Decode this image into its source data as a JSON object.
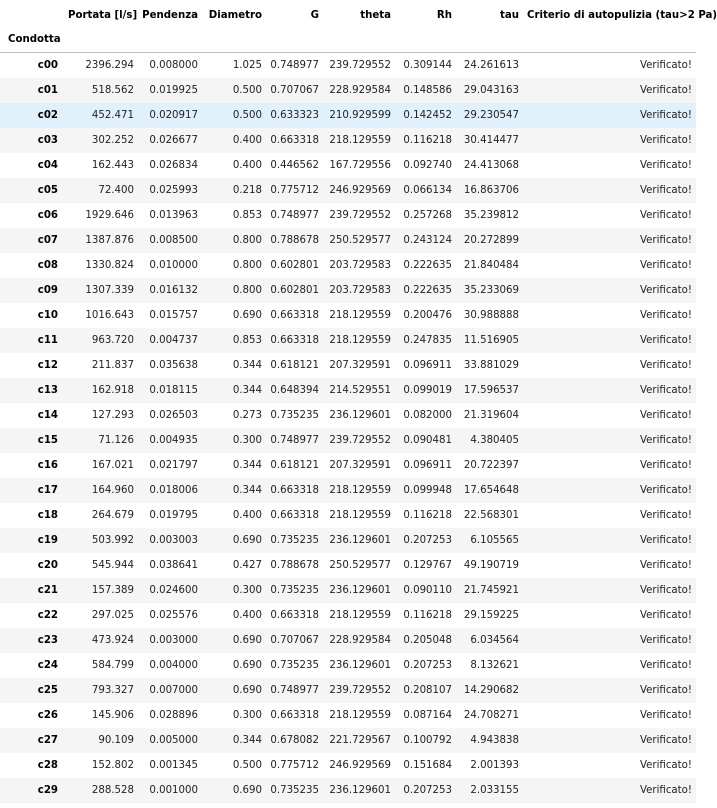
{
  "table": {
    "columns": [
      "Portata [l/s]",
      "Pendenza",
      "Diametro",
      "G",
      "theta",
      "Rh",
      "tau",
      "Criterio di autopulizia (tau>2 Pa)"
    ],
    "index_name": "Condotta",
    "rows": [
      {
        "id": "c00",
        "portata": "2396.294",
        "pendenza": "0.008000",
        "diametro": "1.025",
        "g": "0.748977",
        "theta": "239.729552",
        "rh": "0.309144",
        "tau": "24.261613",
        "criterio": "Verificato!"
      },
      {
        "id": "c01",
        "portata": "518.562",
        "pendenza": "0.019925",
        "diametro": "0.500",
        "g": "0.707067",
        "theta": "228.929584",
        "rh": "0.148586",
        "tau": "29.043163",
        "criterio": "Verificato!"
      },
      {
        "id": "c02",
        "portata": "452.471",
        "pendenza": "0.020917",
        "diametro": "0.500",
        "g": "0.633323",
        "theta": "210.929599",
        "rh": "0.142452",
        "tau": "29.230547",
        "criterio": "Verificato!"
      },
      {
        "id": "c03",
        "portata": "302.252",
        "pendenza": "0.026677",
        "diametro": "0.400",
        "g": "0.663318",
        "theta": "218.129559",
        "rh": "0.116218",
        "tau": "30.414477",
        "criterio": "Verificato!"
      },
      {
        "id": "c04",
        "portata": "162.443",
        "pendenza": "0.026834",
        "diametro": "0.400",
        "g": "0.446562",
        "theta": "167.729556",
        "rh": "0.092740",
        "tau": "24.413068",
        "criterio": "Verificato!"
      },
      {
        "id": "c05",
        "portata": "72.400",
        "pendenza": "0.025993",
        "diametro": "0.218",
        "g": "0.775712",
        "theta": "246.929569",
        "rh": "0.066134",
        "tau": "16.863706",
        "criterio": "Verificato!"
      },
      {
        "id": "c06",
        "portata": "1929.646",
        "pendenza": "0.013963",
        "diametro": "0.853",
        "g": "0.748977",
        "theta": "239.729552",
        "rh": "0.257268",
        "tau": "35.239812",
        "criterio": "Verificato!"
      },
      {
        "id": "c07",
        "portata": "1387.876",
        "pendenza": "0.008500",
        "diametro": "0.800",
        "g": "0.788678",
        "theta": "250.529577",
        "rh": "0.243124",
        "tau": "20.272899",
        "criterio": "Verificato!"
      },
      {
        "id": "c08",
        "portata": "1330.824",
        "pendenza": "0.010000",
        "diametro": "0.800",
        "g": "0.602801",
        "theta": "203.729583",
        "rh": "0.222635",
        "tau": "21.840484",
        "criterio": "Verificato!"
      },
      {
        "id": "c09",
        "portata": "1307.339",
        "pendenza": "0.016132",
        "diametro": "0.800",
        "g": "0.602801",
        "theta": "203.729583",
        "rh": "0.222635",
        "tau": "35.233069",
        "criterio": "Verificato!"
      },
      {
        "id": "c10",
        "portata": "1016.643",
        "pendenza": "0.015757",
        "diametro": "0.690",
        "g": "0.663318",
        "theta": "218.129559",
        "rh": "0.200476",
        "tau": "30.988888",
        "criterio": "Verificato!"
      },
      {
        "id": "c11",
        "portata": "963.720",
        "pendenza": "0.004737",
        "diametro": "0.853",
        "g": "0.663318",
        "theta": "218.129559",
        "rh": "0.247835",
        "tau": "11.516905",
        "criterio": "Verificato!"
      },
      {
        "id": "c12",
        "portata": "211.837",
        "pendenza": "0.035638",
        "diametro": "0.344",
        "g": "0.618121",
        "theta": "207.329591",
        "rh": "0.096911",
        "tau": "33.881029",
        "criterio": "Verificato!"
      },
      {
        "id": "c13",
        "portata": "162.918",
        "pendenza": "0.018115",
        "diametro": "0.344",
        "g": "0.648394",
        "theta": "214.529551",
        "rh": "0.099019",
        "tau": "17.596537",
        "criterio": "Verificato!"
      },
      {
        "id": "c14",
        "portata": "127.293",
        "pendenza": "0.026503",
        "diametro": "0.273",
        "g": "0.735235",
        "theta": "236.129601",
        "rh": "0.082000",
        "tau": "21.319604",
        "criterio": "Verificato!"
      },
      {
        "id": "c15",
        "portata": "71.126",
        "pendenza": "0.004935",
        "diametro": "0.300",
        "g": "0.748977",
        "theta": "239.729552",
        "rh": "0.090481",
        "tau": "4.380405",
        "criterio": "Verificato!"
      },
      {
        "id": "c16",
        "portata": "167.021",
        "pendenza": "0.021797",
        "diametro": "0.344",
        "g": "0.618121",
        "theta": "207.329591",
        "rh": "0.096911",
        "tau": "20.722397",
        "criterio": "Verificato!"
      },
      {
        "id": "c17",
        "portata": "164.960",
        "pendenza": "0.018006",
        "diametro": "0.344",
        "g": "0.663318",
        "theta": "218.129559",
        "rh": "0.099948",
        "tau": "17.654648",
        "criterio": "Verificato!"
      },
      {
        "id": "c18",
        "portata": "264.679",
        "pendenza": "0.019795",
        "diametro": "0.400",
        "g": "0.663318",
        "theta": "218.129559",
        "rh": "0.116218",
        "tau": "22.568301",
        "criterio": "Verificato!"
      },
      {
        "id": "c19",
        "portata": "503.992",
        "pendenza": "0.003003",
        "diametro": "0.690",
        "g": "0.735235",
        "theta": "236.129601",
        "rh": "0.207253",
        "tau": "6.105565",
        "criterio": "Verificato!"
      },
      {
        "id": "c20",
        "portata": "545.944",
        "pendenza": "0.038641",
        "diametro": "0.427",
        "g": "0.788678",
        "theta": "250.529577",
        "rh": "0.129767",
        "tau": "49.190719",
        "criterio": "Verificato!"
      },
      {
        "id": "c21",
        "portata": "157.389",
        "pendenza": "0.024600",
        "diametro": "0.300",
        "g": "0.735235",
        "theta": "236.129601",
        "rh": "0.090110",
        "tau": "21.745921",
        "criterio": "Verificato!"
      },
      {
        "id": "c22",
        "portata": "297.025",
        "pendenza": "0.025576",
        "diametro": "0.400",
        "g": "0.663318",
        "theta": "218.129559",
        "rh": "0.116218",
        "tau": "29.159225",
        "criterio": "Verificato!"
      },
      {
        "id": "c23",
        "portata": "473.924",
        "pendenza": "0.003000",
        "diametro": "0.690",
        "g": "0.707067",
        "theta": "228.929584",
        "rh": "0.205048",
        "tau": "6.034564",
        "criterio": "Verificato!"
      },
      {
        "id": "c24",
        "portata": "584.799",
        "pendenza": "0.004000",
        "diametro": "0.690",
        "g": "0.735235",
        "theta": "236.129601",
        "rh": "0.207253",
        "tau": "8.132621",
        "criterio": "Verificato!"
      },
      {
        "id": "c25",
        "portata": "793.327",
        "pendenza": "0.007000",
        "diametro": "0.690",
        "g": "0.748977",
        "theta": "239.729552",
        "rh": "0.208107",
        "tau": "14.290682",
        "criterio": "Verificato!"
      },
      {
        "id": "c26",
        "portata": "145.906",
        "pendenza": "0.028896",
        "diametro": "0.300",
        "g": "0.663318",
        "theta": "218.129559",
        "rh": "0.087164",
        "tau": "24.708271",
        "criterio": "Verificato!"
      },
      {
        "id": "c27",
        "portata": "90.109",
        "pendenza": "0.005000",
        "diametro": "0.344",
        "g": "0.678082",
        "theta": "221.729567",
        "rh": "0.100792",
        "tau": "4.943838",
        "criterio": "Verificato!"
      },
      {
        "id": "c28",
        "portata": "152.802",
        "pendenza": "0.001345",
        "diametro": "0.500",
        "g": "0.775712",
        "theta": "246.929569",
        "rh": "0.151684",
        "tau": "2.001393",
        "criterio": "Verificato!"
      },
      {
        "id": "c29",
        "portata": "288.528",
        "pendenza": "0.001000",
        "diametro": "0.690",
        "g": "0.735235",
        "theta": "236.129601",
        "rh": "0.207253",
        "tau": "2.033155",
        "criterio": "Verificato!"
      }
    ],
    "hovered_row": "c02",
    "colors": {
      "stripe": "#f5f5f5",
      "hover": "#e1f1fb",
      "header_rule": "#bdbdbd"
    }
  }
}
